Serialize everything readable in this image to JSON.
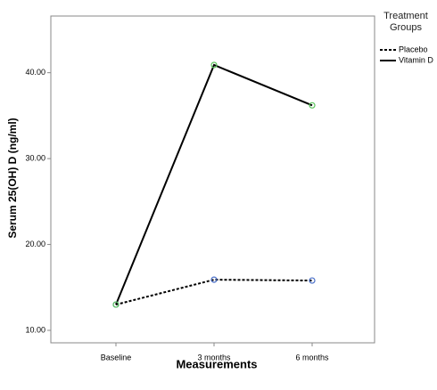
{
  "chart_data": {
    "type": "line",
    "x_label": "Measurements",
    "y_label": "Serum 25(OH) D (ng/ml)",
    "categories": [
      "Baseline",
      "3 months",
      "6 months"
    ],
    "series": [
      {
        "name": "Placebo",
        "color": "#000000",
        "line_style": "dotted",
        "marker_color": "#4a6fc9",
        "values": [
          13.0,
          15.9,
          15.8
        ]
      },
      {
        "name": "Vitamin D",
        "color": "#000000",
        "line_style": "solid",
        "marker_color": "#5cc45c",
        "values": [
          13.0,
          40.9,
          36.2
        ]
      }
    ],
    "ylim": [
      8.55,
      46.6
    ],
    "yticks": [
      {
        "value": 10,
        "label": "10.00"
      },
      {
        "value": 20,
        "label": "20.00"
      },
      {
        "value": 30,
        "label": "30.00"
      },
      {
        "value": 40,
        "label": "40.00"
      }
    ],
    "legend_title": "Treatment Groups",
    "legend_position": "right",
    "grid": false
  }
}
